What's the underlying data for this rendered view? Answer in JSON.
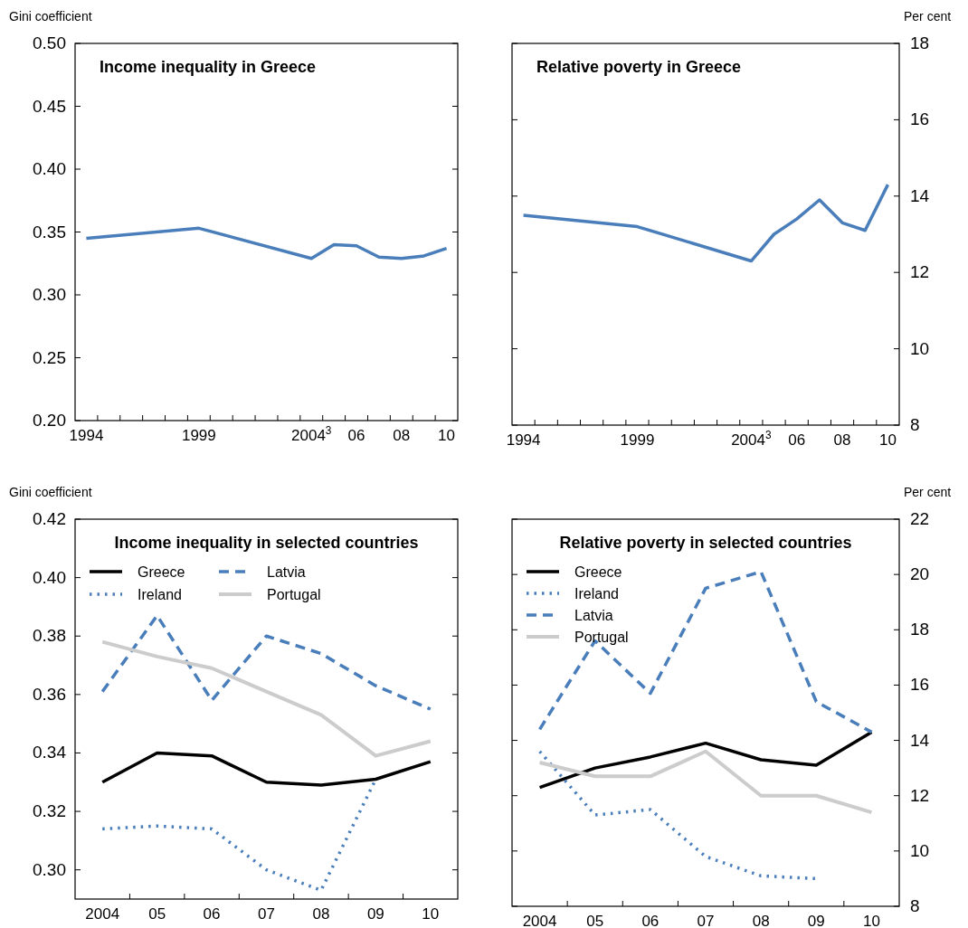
{
  "chart_data": [
    {
      "type": "line",
      "title": "Income inequality in Greece",
      "ylabel": "Gini coefficient",
      "xlim": [
        1993.5,
        2010.5
      ],
      "xticks": [
        {
          "value": 1994,
          "label": "1994"
        },
        {
          "value": 1999,
          "label": "1999"
        },
        {
          "value": 2004,
          "label": "2004$^{3}$"
        },
        {
          "value": 2006,
          "label": "06"
        },
        {
          "value": 2008,
          "label": "08"
        },
        {
          "value": 2010,
          "label": "10"
        },
        {
          "value": 1994.5,
          "label": null
        },
        {
          "value": 1995.5,
          "label": null
        },
        {
          "value": 1996.5,
          "label": null
        },
        {
          "value": 1997.5,
          "label": null
        },
        {
          "value": 1998.5,
          "label": null
        },
        {
          "value": 1999.5,
          "label": null
        },
        {
          "value": 2000.5,
          "label": null
        },
        {
          "value": 2001.5,
          "label": null
        },
        {
          "value": 2002.5,
          "label": null
        },
        {
          "value": 2003.5,
          "label": null
        },
        {
          "value": 2004.5,
          "label": null
        },
        {
          "value": 2005.5,
          "label": null
        },
        {
          "value": 2006.5,
          "label": null
        },
        {
          "value": 2007.5,
          "label": null
        },
        {
          "value": 2008.5,
          "label": null
        },
        {
          "value": 2009.5,
          "label": null
        }
      ],
      "ylim": [
        0.2,
        0.5
      ],
      "yticks": [
        {
          "value": 0.2,
          "label": "0.20"
        },
        {
          "value": 0.25,
          "label": "0.25"
        },
        {
          "value": 0.3,
          "label": "0.30"
        },
        {
          "value": 0.35,
          "label": "0.35"
        },
        {
          "value": 0.4,
          "label": "0.40"
        },
        {
          "value": 0.45,
          "label": "0.45"
        },
        {
          "value": 0.5,
          "label": "0.50"
        }
      ],
      "series": [
        {
          "color": "#4a7ebb",
          "line_style": "solid",
          "x": [
            1994,
            1999,
            2004,
            2005,
            2006,
            2007,
            2008,
            2009,
            2010
          ],
          "values": [
            0.345,
            0.353,
            0.329,
            0.34,
            0.339,
            0.33,
            0.329,
            0.331,
            0.337
          ]
        }
      ]
    },
    {
      "type": "line",
      "title": "Relative poverty in Greece",
      "y2label": "Per cent",
      "xlim": [
        1993.5,
        2010.5
      ],
      "xticks": [
        {
          "value": 1994,
          "label": "1994"
        },
        {
          "value": 1999,
          "label": "1999"
        },
        {
          "value": 2004,
          "label": "2004$^{3}$"
        },
        {
          "value": 2006,
          "label": "06"
        },
        {
          "value": 2008,
          "label": "08"
        },
        {
          "value": 2010,
          "label": "10"
        },
        {
          "value": 1994.5,
          "label": null
        },
        {
          "value": 1995.5,
          "label": null
        },
        {
          "value": 1996.5,
          "label": null
        },
        {
          "value": 1997.5,
          "label": null
        },
        {
          "value": 1998.5,
          "label": null
        },
        {
          "value": 1999.5,
          "label": null
        },
        {
          "value": 2000.5,
          "label": null
        },
        {
          "value": 2001.5,
          "label": null
        },
        {
          "value": 2002.5,
          "label": null
        },
        {
          "value": 2003.5,
          "label": null
        },
        {
          "value": 2004.5,
          "label": null
        },
        {
          "value": 2005.5,
          "label": null
        },
        {
          "value": 2006.5,
          "label": null
        },
        {
          "value": 2007.5,
          "label": null
        },
        {
          "value": 2008.5,
          "label": null
        },
        {
          "value": 2009.5,
          "label": null
        }
      ],
      "y2lim": [
        8,
        18
      ],
      "y2ticks": [
        8,
        10,
        12,
        14,
        16,
        18
      ],
      "series": [
        {
          "color": "#4a7ebb",
          "line_style": "solid",
          "axis": "y2",
          "x": [
            1994,
            1999,
            2004,
            2005,
            2006,
            2007,
            2008,
            2009,
            2010
          ],
          "values": [
            13.5,
            13.2,
            12.3,
            13.0,
            13.4,
            13.9,
            13.3,
            13.1,
            14.3
          ]
        }
      ]
    },
    {
      "type": "line",
      "title": "Income inequality in selected countries",
      "ylabel": "Gini coefficient",
      "legend": "top left",
      "categories": [
        "2004",
        "05",
        "06",
        "07",
        "08",
        "09",
        "10"
      ],
      "ylim": [
        0.29,
        0.42
      ],
      "yticks": [
        {
          "value": 0.3,
          "label": "0.30"
        },
        {
          "value": 0.32,
          "label": "0.32"
        },
        {
          "value": 0.34,
          "label": "0.34"
        },
        {
          "value": 0.36,
          "label": "0.36"
        },
        {
          "value": 0.38,
          "label": "0.38"
        },
        {
          "value": 0.4,
          "label": "0.40"
        },
        {
          "value": 0.42,
          "label": "0.42"
        }
      ],
      "series": [
        {
          "name": "Greece",
          "color": "#000000",
          "line_style": "solid",
          "values": [
            0.33,
            0.34,
            0.339,
            0.33,
            0.329,
            0.331,
            0.337
          ]
        },
        {
          "name": "Ireland",
          "color": "#4a7ebb",
          "line_style": "dotted",
          "values": [
            0.314,
            0.315,
            0.314,
            0.3,
            0.293,
            0.331,
            null
          ]
        },
        {
          "name": "Latvia",
          "color": "#4a7ebb",
          "line_style": "dashed",
          "values": [
            0.361,
            0.387,
            0.358,
            0.38,
            0.374,
            0.363,
            0.355
          ]
        },
        {
          "name": "Portugal",
          "color": "#cccccc",
          "line_style": "solid",
          "values": [
            0.378,
            0.373,
            0.369,
            0.361,
            0.353,
            0.339,
            0.344
          ]
        }
      ]
    },
    {
      "type": "line",
      "title": "Relative poverty in selected countries",
      "y2label": "Per cent",
      "legend": "top left",
      "categories": [
        "2004",
        "05",
        "06",
        "07",
        "08",
        "09",
        "10"
      ],
      "y2lim": [
        8,
        22
      ],
      "y2ticks": [
        8,
        10,
        12,
        14,
        16,
        18,
        20,
        22
      ],
      "series": [
        {
          "name": "Greece",
          "color": "#000000",
          "line_style": "solid",
          "axis": "y2",
          "values": [
            12.3,
            13.0,
            13.4,
            13.9,
            13.3,
            13.1,
            14.3
          ]
        },
        {
          "name": "Ireland",
          "color": "#4a7ebb",
          "line_style": "dotted",
          "axis": "y2",
          "values": [
            13.6,
            11.3,
            11.5,
            9.8,
            9.1,
            9.0,
            null
          ]
        },
        {
          "name": "Latvia",
          "color": "#4a7ebb",
          "line_style": "dashed",
          "axis": "y2",
          "values": [
            14.4,
            17.6,
            15.7,
            19.5,
            20.1,
            15.4,
            14.3
          ]
        },
        {
          "name": "Portugal",
          "color": "#cccccc",
          "line_style": "solid",
          "axis": "y2",
          "values": [
            13.2,
            12.7,
            12.7,
            13.6,
            12.0,
            12.0,
            11.4
          ]
        }
      ]
    }
  ]
}
